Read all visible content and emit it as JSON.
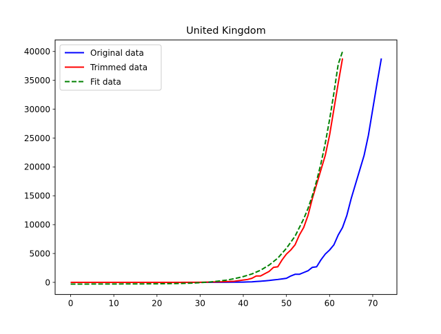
{
  "chart_data": {
    "type": "line",
    "title": "United Kingdom",
    "xlabel": "",
    "ylabel": "",
    "xlim": [
      -3.6,
      75.6
    ],
    "ylim": [
      -2100,
      42000
    ],
    "xticks": [
      0,
      10,
      20,
      30,
      40,
      50,
      60,
      70
    ],
    "yticks": [
      0,
      5000,
      10000,
      15000,
      20000,
      25000,
      30000,
      35000,
      40000
    ],
    "grid": false,
    "legend_position": "top-left",
    "series": [
      {
        "name": "Original data",
        "color": "#0000ff",
        "style": "solid",
        "x": [
          0,
          5,
          10,
          15,
          20,
          25,
          30,
          35,
          40,
          41,
          42,
          43,
          44,
          45,
          46,
          47,
          48,
          49,
          50,
          51,
          52,
          53,
          54,
          55,
          56,
          57,
          58,
          59,
          60,
          61,
          62,
          63,
          64,
          65,
          66,
          67,
          68,
          69,
          70,
          71,
          72
        ],
        "y": [
          0,
          0,
          0,
          0,
          0,
          0,
          2,
          20,
          50,
          70,
          90,
          150,
          200,
          260,
          330,
          420,
          500,
          600,
          700,
          1100,
          1400,
          1400,
          1700,
          2000,
          2600,
          2700,
          3900,
          4900,
          5600,
          6500,
          8200,
          9500,
          11600,
          14500,
          17000,
          19500,
          22000,
          25500,
          30000,
          34500,
          38800
        ]
      },
      {
        "name": "Trimmed data",
        "color": "#ff0000",
        "style": "solid",
        "x": [
          0,
          5,
          10,
          15,
          20,
          25,
          30,
          35,
          38,
          40,
          41,
          42,
          43,
          44,
          45,
          46,
          47,
          48,
          49,
          50,
          51,
          52,
          53,
          54,
          55,
          56,
          57,
          58,
          59,
          60,
          61,
          62,
          63
        ],
        "y": [
          0,
          0,
          0,
          0,
          0,
          0,
          20,
          100,
          200,
          400,
          500,
          700,
          1100,
          1100,
          1500,
          1900,
          2600,
          2700,
          3900,
          4900,
          5600,
          6500,
          8200,
          9500,
          11600,
          14500,
          17000,
          19500,
          22000,
          25500,
          30000,
          34500,
          38800
        ]
      },
      {
        "name": "Fit data",
        "color": "#008000",
        "style": "dashed",
        "x": [
          0,
          5,
          10,
          15,
          20,
          25,
          28,
          30,
          32,
          34,
          36,
          38,
          40,
          42,
          44,
          46,
          48,
          50,
          52,
          54,
          55,
          56,
          57,
          58,
          59,
          60,
          61,
          62,
          63
        ],
        "y": [
          -300,
          -290,
          -280,
          -270,
          -250,
          -200,
          -130,
          -50,
          40,
          200,
          380,
          650,
          1000,
          1450,
          2100,
          3000,
          4200,
          5900,
          8000,
          11000,
          12800,
          15000,
          17600,
          20600,
          24100,
          28200,
          32800,
          37800,
          40000
        ]
      }
    ]
  }
}
